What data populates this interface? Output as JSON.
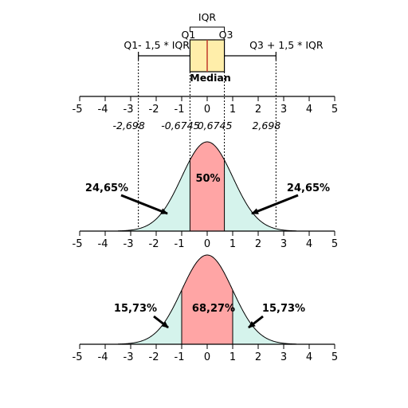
{
  "colors": {
    "box_fill": "#ffeeaa",
    "median_line": "#c0392b",
    "center_fill": "#ffa5a5",
    "tail_fill": "#d5f3ec",
    "curve": "#000000"
  },
  "boxplot": {
    "iqr_label": "IQR",
    "q1_label": "Q1",
    "q3_label": "Q3",
    "lower_whisker_label": "Q1- 1,5 * IQR",
    "upper_whisker_label": "Q3 + 1,5 * IQR",
    "median_label": "Median",
    "q1": -0.6745,
    "q3": 0.6745,
    "median": 0,
    "lower_whisker": -2.698,
    "upper_whisker": 2.698
  },
  "top_axis": {
    "ticks": [
      "-5",
      "-4",
      "-3",
      "-2",
      "-1",
      "0",
      "1",
      "2",
      "3",
      "4",
      "5"
    ],
    "value_labels": [
      "-2,698",
      "-0,6745",
      "0,6745",
      "2,698"
    ]
  },
  "chart_data": [
    {
      "type": "area",
      "xlim": [
        -5,
        5
      ],
      "x_ticks": [
        "-5",
        "-4",
        "-3",
        "-2",
        "-1",
        "0",
        "1",
        "2",
        "3",
        "4",
        "5"
      ],
      "shaded_region": [
        -0.6745,
        0.6745
      ],
      "center_label": "50%",
      "left_tail_label": "24,65%",
      "right_tail_label": "24,65%"
    },
    {
      "type": "area",
      "xlim": [
        -5,
        5
      ],
      "x_ticks": [
        "-5",
        "-4",
        "-3",
        "-2",
        "-1",
        "0",
        "1",
        "2",
        "3",
        "4",
        "5"
      ],
      "shaded_region": [
        -1,
        1
      ],
      "center_label": "68,27%",
      "left_tail_label": "15,73%",
      "right_tail_label": "15,73%"
    }
  ]
}
